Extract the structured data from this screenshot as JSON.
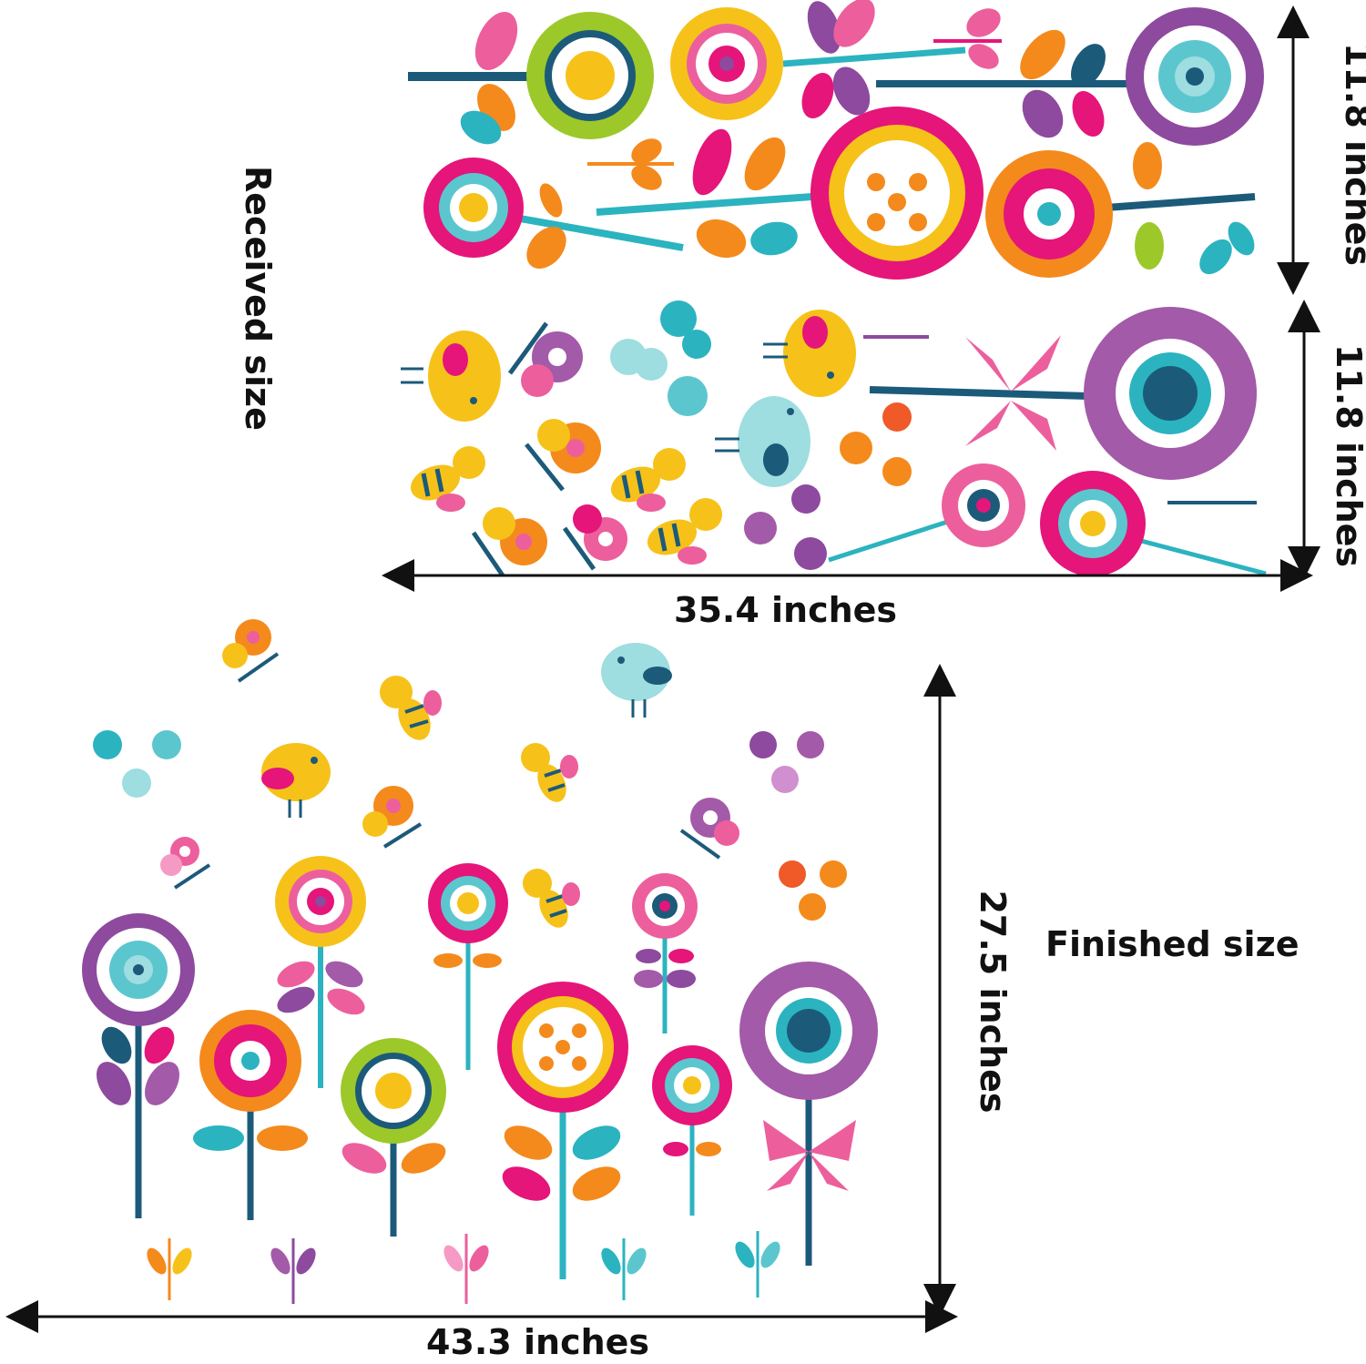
{
  "labels": {
    "received_size": "Received size",
    "finished_size": "Finished size",
    "received_height_1": "11.8 inches",
    "received_height_2": "11.8 inches",
    "received_width": "35.4 inches",
    "finished_height": "27.5 inches",
    "finished_width": "43.3 inches"
  },
  "colors": {
    "dimension_line": "#111111",
    "stem_dark": "#1c5a7a",
    "stem_teal": "#2bb3c0",
    "magenta": "#e5157a",
    "pink": "#ec5f9c",
    "light_pink": "#f59ac4",
    "orange": "#f48a1c",
    "yellow": "#f6c21a",
    "lime": "#9cc82a",
    "purple": "#8d4a9e",
    "violet": "#a35aa8",
    "aqua": "#5cc6cf",
    "light_aqua": "#9edde0",
    "red_orange": "#ef5a28"
  }
}
